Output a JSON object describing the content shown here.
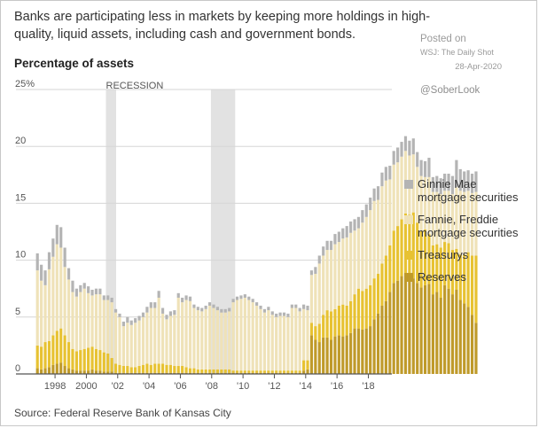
{
  "header": {
    "headline": "Banks are participating less in markets by keeping more holdings in high-quality, liquid assets, including cash and government bonds.",
    "posted_on": "Posted on",
    "posted_source": "WSJ: The Daily Shot",
    "posted_date": "28-Apr-2020",
    "handle": "@SoberLook"
  },
  "footer": {
    "source": "Source: Federal Reserve Bank of Kansas City"
  },
  "colors": {
    "ginnie": "#b4b4b4",
    "fannie": "#efe2b8",
    "treasurys": "#e7c232",
    "reserves": "#bf9a2a",
    "recession": "#e2e2e2",
    "grid": "#d6d6d6",
    "axis": "#555555"
  },
  "chart_data": {
    "type": "bar",
    "stacked": true,
    "title": "Percentage of assets",
    "xlabel": "",
    "ylabel": "Percentage of assets",
    "ylim": [
      0,
      25
    ],
    "yticks": [
      0,
      5,
      10,
      15,
      20,
      25
    ],
    "ytick_labels": [
      "0",
      "5",
      "10",
      "15",
      "20",
      "25%"
    ],
    "xlim": [
      1996.75,
      2019.5
    ],
    "xticks": [
      1998,
      2000,
      2002,
      2004,
      2006,
      2008,
      2010,
      2012,
      2014,
      2016,
      2018
    ],
    "xtick_labels": [
      "1998",
      "2000",
      "'02",
      "'04",
      "'06",
      "'08",
      "'10",
      "'12",
      "'14",
      "'16",
      "'18"
    ],
    "grid": true,
    "legend_position": "right",
    "recessions": [
      {
        "label": "RECESSION",
        "start": 2001.25,
        "end": 2001.9
      },
      {
        "label": "",
        "start": 2007.95,
        "end": 2009.5
      }
    ],
    "quarter_step": 0.25,
    "x_start": 1996.875,
    "series": [
      {
        "name": "Reserves",
        "color_key": "reserves",
        "values": [
          0.5,
          0.4,
          0.5,
          0.6,
          0.8,
          0.9,
          1.0,
          0.7,
          0.5,
          0.4,
          0.3,
          0.3,
          0.3,
          0.3,
          0.4,
          0.3,
          0.3,
          0.2,
          0.2,
          0.2,
          0.1,
          0.1,
          0.1,
          0.1,
          0.1,
          0.1,
          0.1,
          0.1,
          0.1,
          0.1,
          0.1,
          0.1,
          0.1,
          0.1,
          0.1,
          0.1,
          0.1,
          0.1,
          0.1,
          0.1,
          0.1,
          0.1,
          0.1,
          0.1,
          0.1,
          0.1,
          0.1,
          0.1,
          0.1,
          0.1,
          0.1,
          0.1,
          0.1,
          0.1,
          0.1,
          0.1,
          0.1,
          0.1,
          0.1,
          0.1,
          0.1,
          0.1,
          0.1,
          0.1,
          0.1,
          0.1,
          0.1,
          0.1,
          0.3,
          0.4,
          3.4,
          3.0,
          2.8,
          3.2,
          3.2,
          3.0,
          3.3,
          3.4,
          3.3,
          3.4,
          3.6,
          4.0,
          4.0,
          3.9,
          4.0,
          4.2,
          4.8,
          5.3,
          6.0,
          6.4,
          7.2,
          8.0,
          8.2,
          8.6,
          8.8,
          8.5,
          8.4,
          8.0,
          7.6,
          7.8,
          7.9,
          7.0,
          7.2,
          6.7,
          7.8,
          7.5,
          7.0,
          7.4,
          6.5,
          6.2,
          5.9,
          5.2,
          4.5
        ]
      },
      {
        "name": "Treasurys",
        "color_key": "treasurys",
        "values": [
          2.0,
          2.0,
          2.3,
          2.3,
          2.6,
          2.9,
          3.0,
          2.7,
          2.3,
          1.8,
          1.7,
          1.8,
          1.9,
          2.0,
          2.0,
          1.9,
          1.8,
          1.7,
          1.6,
          1.2,
          0.8,
          0.7,
          0.6,
          0.6,
          0.5,
          0.5,
          0.6,
          0.7,
          0.8,
          0.7,
          0.8,
          0.8,
          0.8,
          0.7,
          0.7,
          0.6,
          0.6,
          0.6,
          0.5,
          0.4,
          0.4,
          0.3,
          0.3,
          0.3,
          0.3,
          0.3,
          0.3,
          0.3,
          0.3,
          0.3,
          0.2,
          0.2,
          0.2,
          0.2,
          0.2,
          0.2,
          0.2,
          0.2,
          0.2,
          0.2,
          0.2,
          0.2,
          0.2,
          0.2,
          0.2,
          0.2,
          0.2,
          0.2,
          0.9,
          0.8,
          1.1,
          1.2,
          1.6,
          2.0,
          2.4,
          2.5,
          2.4,
          2.6,
          2.8,
          2.6,
          2.8,
          3.0,
          3.5,
          3.4,
          3.5,
          3.6,
          3.6,
          3.5,
          3.7,
          4.0,
          4.1,
          4.6,
          4.8,
          5.0,
          5.3,
          5.5,
          5.8,
          5.3,
          5.0,
          4.9,
          4.4,
          4.3,
          4.2,
          4.4,
          3.8,
          4.0,
          3.9,
          3.6,
          4.0,
          4.3,
          4.8,
          5.2,
          5.9
        ]
      },
      {
        "name": "Fannie, Freddie mortgage securities",
        "color_key": "fannie",
        "values": [
          6.6,
          5.8,
          5.0,
          6.3,
          6.9,
          7.6,
          7.1,
          6.0,
          5.5,
          5.0,
          4.8,
          5.1,
          5.3,
          4.8,
          4.5,
          4.8,
          4.9,
          4.6,
          4.7,
          4.9,
          4.5,
          4.2,
          3.5,
          3.8,
          3.7,
          3.9,
          4.0,
          4.2,
          4.5,
          5.0,
          4.9,
          5.8,
          4.4,
          4.0,
          4.3,
          4.5,
          6.0,
          5.6,
          5.9,
          5.9,
          5.3,
          5.2,
          5.1,
          5.3,
          5.6,
          5.4,
          5.2,
          5.0,
          5.0,
          5.1,
          6.0,
          6.2,
          6.3,
          6.4,
          6.2,
          6.0,
          5.7,
          5.4,
          5.1,
          5.3,
          4.9,
          4.7,
          4.8,
          4.8,
          4.7,
          5.5,
          5.5,
          5.2,
          4.5,
          4.4,
          4.2,
          4.6,
          5.3,
          5.2,
          5.3,
          5.4,
          5.7,
          5.6,
          5.8,
          6.0,
          6.0,
          5.6,
          5.3,
          6.0,
          6.3,
          6.6,
          6.8,
          6.5,
          6.8,
          6.6,
          5.8,
          5.8,
          5.6,
          5.5,
          5.5,
          5.2,
          5.1,
          4.9,
          4.8,
          4.6,
          5.0,
          4.7,
          4.6,
          4.7,
          4.5,
          4.6,
          4.9,
          5.4,
          5.6,
          5.5,
          5.4,
          5.5,
          5.6
        ]
      },
      {
        "name": "Ginnie Mae mortgage securities",
        "color_key": "ginnie",
        "values": [
          1.5,
          1.4,
          1.3,
          1.5,
          1.6,
          1.7,
          1.8,
          1.7,
          1.0,
          1.0,
          0.7,
          0.6,
          0.5,
          0.6,
          0.5,
          0.5,
          0.5,
          0.4,
          0.4,
          0.4,
          0.3,
          0.3,
          0.4,
          0.5,
          0.4,
          0.4,
          0.4,
          0.4,
          0.5,
          0.5,
          0.5,
          0.6,
          0.5,
          0.4,
          0.4,
          0.4,
          0.4,
          0.4,
          0.4,
          0.4,
          0.3,
          0.3,
          0.3,
          0.3,
          0.3,
          0.3,
          0.3,
          0.3,
          0.3,
          0.3,
          0.3,
          0.3,
          0.3,
          0.3,
          0.3,
          0.3,
          0.3,
          0.3,
          0.3,
          0.3,
          0.3,
          0.3,
          0.3,
          0.3,
          0.3,
          0.3,
          0.3,
          0.3,
          0.4,
          0.4,
          0.4,
          0.6,
          0.7,
          0.8,
          0.8,
          0.8,
          0.9,
          0.9,
          0.9,
          1.0,
          1.0,
          1.0,
          1.0,
          1.1,
          1.1,
          1.1,
          1.1,
          1.2,
          1.2,
          1.2,
          1.2,
          1.2,
          1.3,
          1.3,
          1.3,
          1.3,
          1.4,
          1.3,
          1.4,
          1.4,
          1.7,
          1.3,
          1.4,
          1.4,
          1.5,
          1.5,
          1.6,
          2.4,
          1.9,
          1.8,
          1.8,
          1.7,
          1.8
        ]
      }
    ]
  }
}
